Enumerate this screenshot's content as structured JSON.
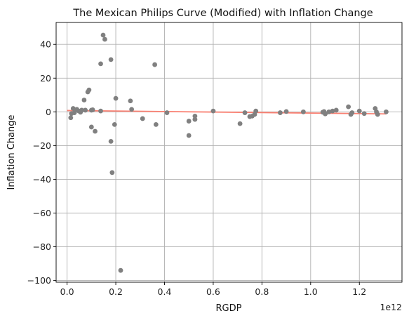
{
  "chart_data": {
    "type": "scatter",
    "title": "The Mexican Philips Curve (Modified) with Inflation Change",
    "xlabel": "RGDP",
    "ylabel": "Inflation Change",
    "x_offset_label": "1e12",
    "x_scale": 1000000000000.0,
    "xlim": [
      -0.045,
      1.375
    ],
    "ylim": [
      -101,
      53
    ],
    "xticks": [
      0.0,
      0.2,
      0.4,
      0.6,
      0.8,
      1.0,
      1.2
    ],
    "xtick_labels": [
      "0.0",
      "0.2",
      "0.4",
      "0.6",
      "0.8",
      "1.0",
      "1.2"
    ],
    "yticks": [
      -100,
      -80,
      -60,
      -40,
      -20,
      0,
      20,
      40
    ],
    "ytick_labels": [
      "−100",
      "−80",
      "−60",
      "−40",
      "−20",
      "0",
      "20",
      "40"
    ],
    "grid": true,
    "point_color": "#808080",
    "line_color": "#fa8072",
    "points": [
      {
        "x": 0.015,
        "y": -3.5
      },
      {
        "x": 0.018,
        "y": -1.0
      },
      {
        "x": 0.025,
        "y": 2.0
      },
      {
        "x": 0.03,
        "y": -0.5
      },
      {
        "x": 0.04,
        "y": 1.5
      },
      {
        "x": 0.048,
        "y": 0.5
      },
      {
        "x": 0.055,
        "y": -0.2
      },
      {
        "x": 0.06,
        "y": 1.0
      },
      {
        "x": 0.07,
        "y": 7.0
      },
      {
        "x": 0.075,
        "y": 1.0
      },
      {
        "x": 0.085,
        "y": 11.8
      },
      {
        "x": 0.09,
        "y": 13.0
      },
      {
        "x": 0.1,
        "y": -9.0
      },
      {
        "x": 0.1,
        "y": 1.0
      },
      {
        "x": 0.105,
        "y": 1.2
      },
      {
        "x": 0.115,
        "y": -11.5
      },
      {
        "x": 0.138,
        "y": 28.5
      },
      {
        "x": 0.138,
        "y": 0.5
      },
      {
        "x": 0.148,
        "y": 45.5
      },
      {
        "x": 0.155,
        "y": 43.0
      },
      {
        "x": 0.18,
        "y": 31.0
      },
      {
        "x": 0.18,
        "y": -17.5
      },
      {
        "x": 0.185,
        "y": -36.0
      },
      {
        "x": 0.195,
        "y": -7.5
      },
      {
        "x": 0.2,
        "y": 8.0
      },
      {
        "x": 0.22,
        "y": -94.0
      },
      {
        "x": 0.26,
        "y": 6.5
      },
      {
        "x": 0.265,
        "y": 1.5
      },
      {
        "x": 0.31,
        "y": -4.0
      },
      {
        "x": 0.36,
        "y": 28.0
      },
      {
        "x": 0.365,
        "y": -7.5
      },
      {
        "x": 0.41,
        "y": -0.5
      },
      {
        "x": 0.5,
        "y": -5.5
      },
      {
        "x": 0.5,
        "y": -14.0
      },
      {
        "x": 0.525,
        "y": -2.5
      },
      {
        "x": 0.525,
        "y": -4.5
      },
      {
        "x": 0.6,
        "y": 0.5
      },
      {
        "x": 0.71,
        "y": -7.0
      },
      {
        "x": 0.73,
        "y": -0.5
      },
      {
        "x": 0.75,
        "y": -2.8
      },
      {
        "x": 0.76,
        "y": -2.5
      },
      {
        "x": 0.77,
        "y": -1.5
      },
      {
        "x": 0.775,
        "y": 0.5
      },
      {
        "x": 0.875,
        "y": -0.5
      },
      {
        "x": 0.9,
        "y": 0.2
      },
      {
        "x": 0.97,
        "y": 0.0
      },
      {
        "x": 1.05,
        "y": -0.2
      },
      {
        "x": 1.055,
        "y": 0.2
      },
      {
        "x": 1.06,
        "y": -1.2
      },
      {
        "x": 1.075,
        "y": 0.0
      },
      {
        "x": 1.09,
        "y": 0.5
      },
      {
        "x": 1.105,
        "y": 1.0
      },
      {
        "x": 1.155,
        "y": 3.0
      },
      {
        "x": 1.165,
        "y": -1.5
      },
      {
        "x": 1.17,
        "y": -0.5
      },
      {
        "x": 1.2,
        "y": 0.5
      },
      {
        "x": 1.22,
        "y": -1.0
      },
      {
        "x": 1.265,
        "y": 2.0
      },
      {
        "x": 1.27,
        "y": 0.0
      },
      {
        "x": 1.275,
        "y": -1.5
      },
      {
        "x": 1.31,
        "y": 0.0
      }
    ],
    "fit_line": {
      "x": [
        0.0,
        1.31
      ],
      "y": [
        0.8,
        -1.2
      ]
    }
  }
}
